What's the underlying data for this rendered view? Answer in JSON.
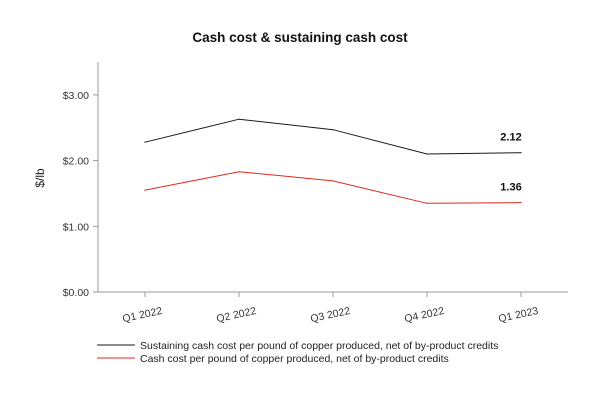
{
  "chart_data": {
    "type": "line",
    "title": "Cash cost & sustaining cash cost",
    "xlabel": "",
    "ylabel": "$/lb",
    "categories": [
      "Q1 2022",
      "Q2 2022",
      "Q3 2022",
      "Q4 2022",
      "Q1 2023"
    ],
    "ylim": [
      0,
      3.5
    ],
    "yticks": [
      0,
      1,
      2,
      3
    ],
    "ytick_labels": [
      "$0.00",
      "$1.00",
      "$2.00",
      "$3.00"
    ],
    "grid": false,
    "legend_position": "bottom",
    "series": [
      {
        "name": "Sustaining cash cost per pound of copper produced, net of by-product credits",
        "color": "#1a1a1a",
        "values": [
          2.28,
          2.63,
          2.47,
          2.1,
          2.12
        ],
        "end_label": "2.12"
      },
      {
        "name": "Cash cost per pound of copper produced, net of by-product credits",
        "color": "#e0281e",
        "values": [
          1.55,
          1.83,
          1.69,
          1.35,
          1.36
        ],
        "end_label": "1.36"
      }
    ]
  }
}
